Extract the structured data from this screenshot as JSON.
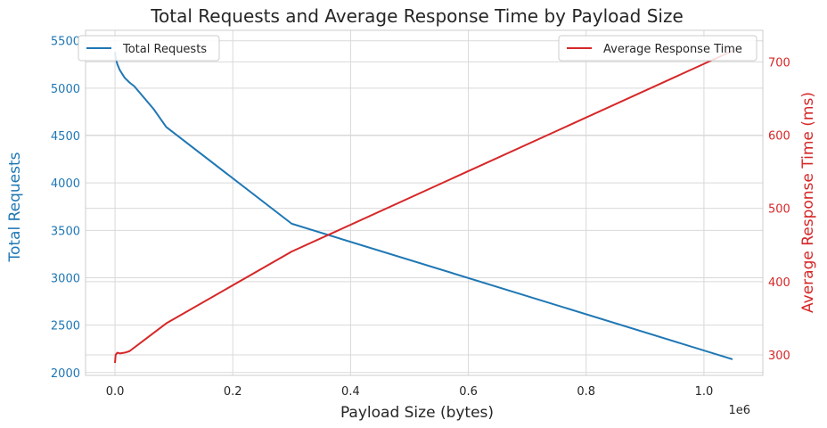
{
  "chart_data": {
    "type": "line",
    "title": "Total Requests and Average Response Time by Payload Size",
    "xlabel": "Payload Size (bytes)",
    "x_offset_text": "1e6",
    "xlim": [
      -50000,
      1100000
    ],
    "x_ticks": [
      0,
      200000,
      400000,
      600000,
      800000,
      1000000
    ],
    "x_tick_labels": [
      "0.0",
      "0.2",
      "0.4",
      "0.6",
      "0.8",
      "1.0"
    ],
    "grid": true,
    "colors": {
      "left": "#1f77b4",
      "right": "#d62728",
      "grid": "#d9d9d9"
    },
    "y_left": {
      "label": "Total Requests",
      "ylim": [
        1970,
        5610
      ],
      "ticks": [
        2000,
        2500,
        3000,
        3500,
        4000,
        4500,
        5000,
        5500
      ],
      "tick_labels": [
        "2000",
        "2500",
        "3000",
        "3500",
        "4000",
        "4500",
        "5000",
        "5500"
      ]
    },
    "y_right": {
      "label": "Average Response Time (ms)",
      "ylim": [
        272,
        743
      ],
      "ticks": [
        300,
        400,
        500,
        600,
        700
      ],
      "tick_labels": [
        "300",
        "400",
        "500",
        "600",
        "700"
      ]
    },
    "series": [
      {
        "name": "Total Requests",
        "axis": "left",
        "color": "#1f77b4",
        "legend_position": "top-left",
        "x": [
          0,
          1024,
          4096,
          8192,
          16384,
          24576,
          32768,
          65536,
          87000,
          300000,
          1048576
        ],
        "y": [
          5380,
          5320,
          5250,
          5190,
          5110,
          5060,
          5020,
          4780,
          4590,
          3570,
          2140
        ]
      },
      {
        "name": "Average Response Time",
        "axis": "right",
        "color": "#d62728",
        "legend_position": "top-right",
        "x": [
          0,
          1024,
          4096,
          8192,
          16384,
          24576,
          87000,
          300000,
          1048576
        ],
        "y": [
          289,
          300,
          303,
          302,
          303,
          305,
          343,
          441,
          715
        ]
      }
    ]
  }
}
